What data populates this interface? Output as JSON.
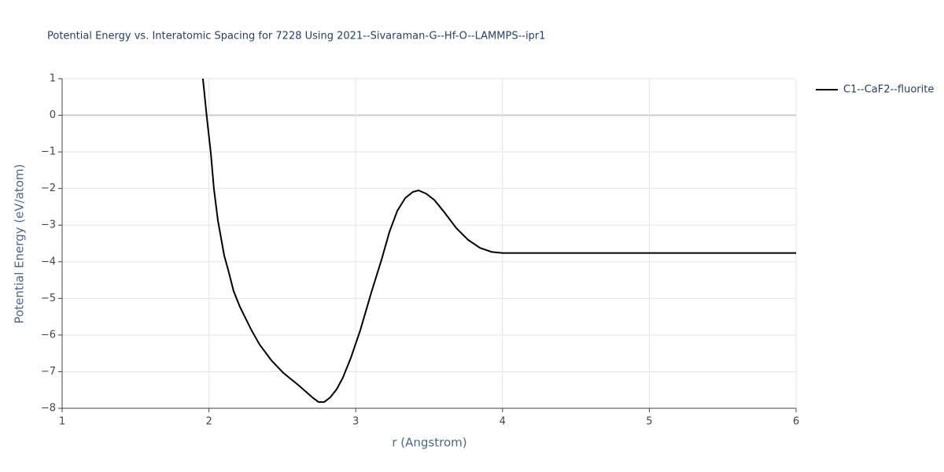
{
  "chart_data": {
    "type": "line",
    "title": "Potential Energy vs. Interatomic Spacing for 7228 Using 2021--Sivaraman-G--Hf-O--LAMMPS--ipr1",
    "x_label": "r (Angstrom)",
    "y_label": "Potential Energy (eV/atom)",
    "x": [
      1.959,
      1.986,
      2.013,
      2.034,
      2.061,
      2.104,
      2.131,
      2.168,
      2.211,
      2.29,
      2.345,
      2.425,
      2.506,
      2.613,
      2.71,
      2.747,
      2.785,
      2.827,
      2.87,
      2.913,
      2.967,
      3.031,
      3.106,
      3.176,
      3.229,
      3.283,
      3.337,
      3.39,
      3.428,
      3.48,
      3.535,
      3.604,
      3.685,
      3.765,
      3.846,
      3.926,
      4.0,
      6.0
    ],
    "series": [
      {
        "name": "C1--CaF2--fluorite",
        "color": "#000000",
        "values": [
          1.0,
          -0.07,
          -1.04,
          -2.01,
          -2.87,
          -3.83,
          -4.22,
          -4.8,
          -5.23,
          -5.87,
          -6.26,
          -6.69,
          -7.03,
          -7.38,
          -7.72,
          -7.83,
          -7.83,
          -7.7,
          -7.48,
          -7.16,
          -6.62,
          -5.87,
          -4.84,
          -3.94,
          -3.19,
          -2.61,
          -2.26,
          -2.09,
          -2.05,
          -2.14,
          -2.31,
          -2.65,
          -3.08,
          -3.4,
          -3.62,
          -3.73,
          -3.76,
          -3.76
        ]
      }
    ],
    "xlim": [
      1,
      6
    ],
    "xticks": [
      1,
      2,
      3,
      4,
      5,
      6
    ],
    "ylim": [
      -8,
      1
    ],
    "yticks": [
      {
        "value": -8,
        "label": "−8"
      },
      {
        "value": -7,
        "label": "−7"
      },
      {
        "value": -6,
        "label": "−6"
      },
      {
        "value": -5,
        "label": "−5"
      },
      {
        "value": -4,
        "label": "−4"
      },
      {
        "value": -3,
        "label": "−3"
      },
      {
        "value": -2,
        "label": "−2"
      },
      {
        "value": -1,
        "label": "−1"
      },
      0,
      1
    ],
    "grid": true
  }
}
